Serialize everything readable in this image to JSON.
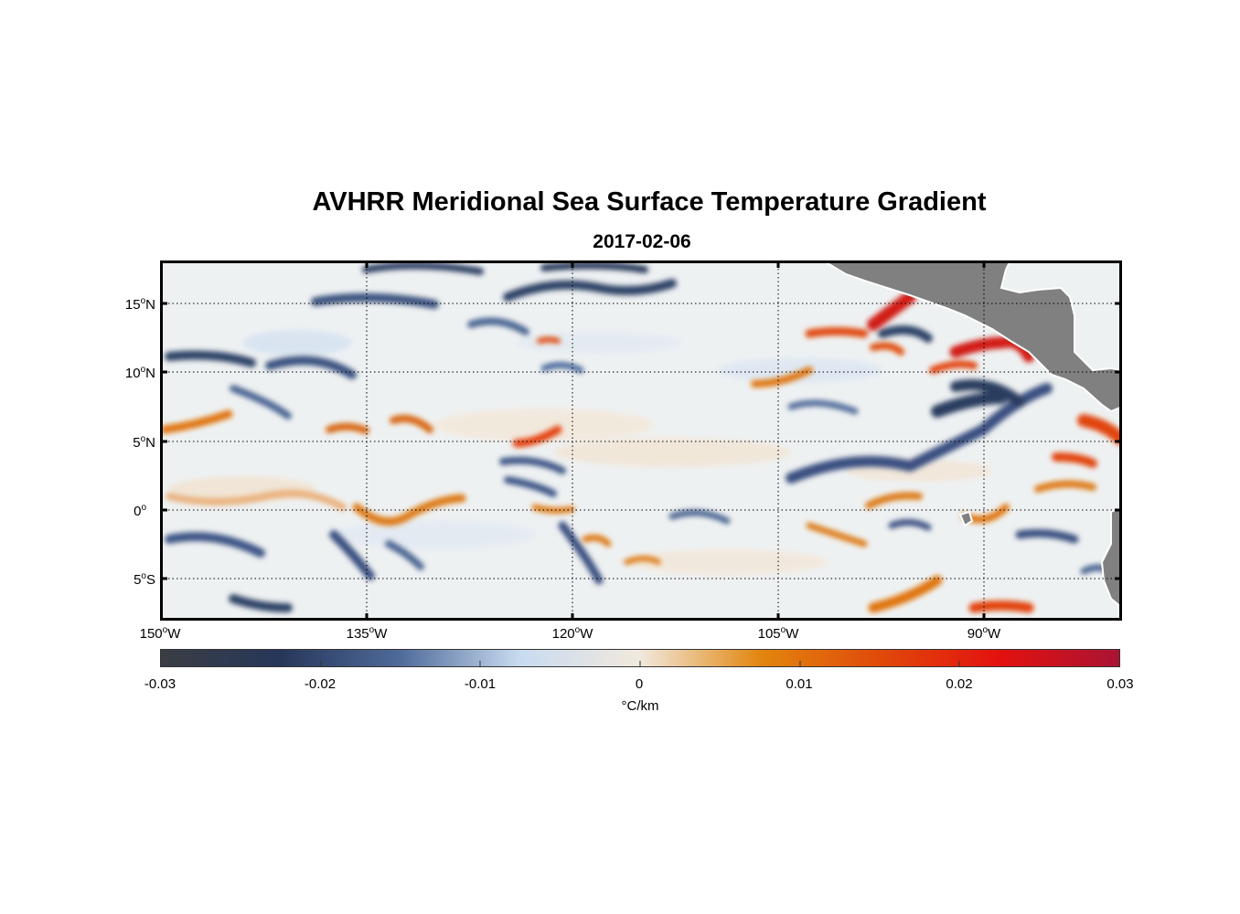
{
  "title": "AVHRR Meridional Sea Surface Temperature Gradient",
  "subtitle": "2017-02-06",
  "lat_labels": [
    {
      "deg": "15",
      "hemi": "N"
    },
    {
      "deg": "10",
      "hemi": "N"
    },
    {
      "deg": "5",
      "hemi": "N"
    },
    {
      "deg": "0",
      "hemi": ""
    },
    {
      "deg": "5",
      "hemi": "S"
    }
  ],
  "lon_labels": [
    {
      "deg": "150",
      "hemi": "W"
    },
    {
      "deg": "135",
      "hemi": "W"
    },
    {
      "deg": "120",
      "hemi": "W"
    },
    {
      "deg": "105",
      "hemi": "W"
    },
    {
      "deg": "90",
      "hemi": "W"
    }
  ],
  "degree_symbol": "o",
  "colorbar": {
    "ticks": [
      "-0.03",
      "-0.02",
      "-0.01",
      "0",
      "0.01",
      "0.02",
      "0.03"
    ],
    "unit": "°C/km",
    "range": [
      -0.03,
      0.03
    ],
    "colors": [
      "#3a3d44",
      "#27375a",
      "#4f6b9a",
      "#c8dbf0",
      "#f1e9dd",
      "#e2860f",
      "#e04a0a",
      "#e3110f",
      "#a91434"
    ]
  },
  "land_color": "#808080"
}
